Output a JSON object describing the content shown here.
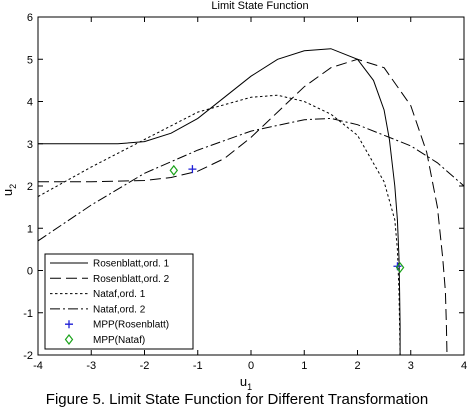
{
  "chart_data": {
    "type": "line",
    "title": "Limit State Function",
    "xlabel": "u",
    "xlabel_sub": "1",
    "ylabel": "u",
    "ylabel_sub": "2",
    "xlim": [
      -4,
      4
    ],
    "ylim": [
      -2,
      6
    ],
    "xticks": [
      -4,
      -3,
      -2,
      -1,
      0,
      1,
      2,
      3,
      4
    ],
    "yticks": [
      -2,
      -1,
      0,
      1,
      2,
      3,
      4,
      5,
      6
    ],
    "grid": false,
    "legend_position": "bottom-left",
    "series": [
      {
        "name": "Rosenblatt,ord. 1",
        "style": "solid",
        "x": [
          -4.0,
          -2.5,
          -2.0,
          -1.5,
          -1.0,
          -0.5,
          0.0,
          0.5,
          1.0,
          1.5,
          2.0,
          2.3,
          2.5,
          2.6,
          2.7,
          2.75,
          2.78,
          2.79,
          2.8,
          2.8
        ],
        "y": [
          3.0,
          3.0,
          3.05,
          3.25,
          3.6,
          4.1,
          4.6,
          5.0,
          5.2,
          5.25,
          5.0,
          4.5,
          3.8,
          3.1,
          2.0,
          1.2,
          0.3,
          -0.5,
          -1.3,
          -2.0
        ]
      },
      {
        "name": "Rosenblatt,ord. 2",
        "style": "dashed",
        "x": [
          -4.0,
          -3.0,
          -2.0,
          -1.5,
          -1.0,
          -0.5,
          0.0,
          0.5,
          1.0,
          1.5,
          2.0,
          2.5,
          3.0,
          3.3,
          3.5,
          3.6,
          3.65,
          3.67,
          3.68
        ],
        "y": [
          2.1,
          2.1,
          2.13,
          2.2,
          2.35,
          2.65,
          3.15,
          3.75,
          4.35,
          4.8,
          5.0,
          4.8,
          3.9,
          2.8,
          1.5,
          0.3,
          -0.5,
          -1.3,
          -2.0
        ]
      },
      {
        "name": "Nataf,ord. 1",
        "style": "dotted",
        "x": [
          -4.0,
          -3.0,
          -2.0,
          -1.0,
          0.0,
          0.5,
          1.0,
          1.5,
          2.0,
          2.5,
          2.7,
          2.75,
          2.78,
          2.8
        ],
        "y": [
          1.75,
          2.45,
          3.1,
          3.75,
          4.1,
          4.15,
          4.0,
          3.7,
          3.2,
          2.1,
          1.2,
          0.5,
          -0.5,
          -2.0
        ]
      },
      {
        "name": "Nataf,ord. 2",
        "style": "dashdot",
        "x": [
          -4.0,
          -3.0,
          -2.0,
          -1.0,
          0.0,
          1.0,
          1.5,
          2.0,
          2.5,
          3.0,
          3.5,
          4.0
        ],
        "y": [
          0.7,
          1.55,
          2.3,
          2.85,
          3.3,
          3.57,
          3.6,
          3.45,
          3.2,
          2.95,
          2.55,
          2.0
        ]
      }
    ],
    "points": [
      {
        "name": "MPP(Rosenblatt)",
        "marker": "plus",
        "color": "#1f1fd6",
        "values": [
          [
            -1.1,
            2.4
          ],
          [
            2.75,
            0.1
          ]
        ]
      },
      {
        "name": "MPP(Nataf)",
        "marker": "diamond",
        "color": "#1aa31a",
        "values": [
          [
            -1.45,
            2.37
          ],
          [
            2.8,
            0.07
          ]
        ]
      }
    ]
  },
  "caption": "Figure 5. Limit State Function for Different Transformation"
}
